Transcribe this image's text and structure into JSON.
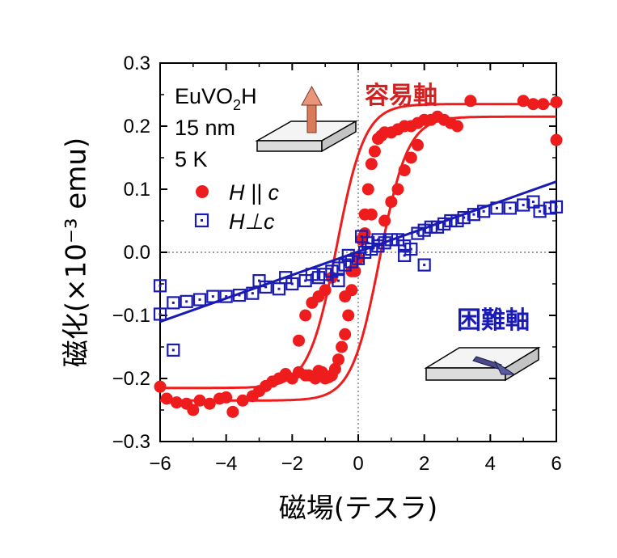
{
  "chart_data": {
    "type": "scatter",
    "xlabel": "磁場(テスラ)",
    "ylabel": "磁化(×10⁻³ emu)",
    "xlim": [
      -6,
      6
    ],
    "ylim": [
      -0.3,
      0.3
    ],
    "xticks": [
      "−6",
      "−4",
      "−2",
      "0",
      "2",
      "4",
      "6"
    ],
    "yticks": [
      "0.3",
      "0.2",
      "0.1",
      "0.0",
      "−0.1",
      "−0.2",
      "−0.3"
    ],
    "grid": false,
    "zero_lines": true,
    "annotations": {
      "sample": "EuVO",
      "sample_sub": "2",
      "sample_tail": "H",
      "thickness": "15 nm",
      "temperature": "5 K",
      "easy_axis": "容易軸",
      "hard_axis": "困難軸"
    },
    "legend_position": "left",
    "series": [
      {
        "name": "H || c",
        "marker": "filled-circle",
        "color": "#ee1c1c",
        "points": [
          [
            -6,
            -0.213
          ],
          [
            -5.8,
            -0.232
          ],
          [
            -5.5,
            -0.238
          ],
          [
            -5.2,
            -0.24
          ],
          [
            -5,
            -0.25
          ],
          [
            -4.8,
            -0.235
          ],
          [
            -4.5,
            -0.24
          ],
          [
            -4.2,
            -0.232
          ],
          [
            -4,
            -0.23
          ],
          [
            -3.8,
            -0.253
          ],
          [
            -3.5,
            -0.235
          ],
          [
            -3.2,
            -0.228
          ],
          [
            -3,
            -0.22
          ],
          [
            -2.8,
            -0.212
          ],
          [
            -2.6,
            -0.205
          ],
          [
            -2.4,
            -0.2
          ],
          [
            -2.2,
            -0.193
          ],
          [
            -2,
            -0.2
          ],
          [
            -1.8,
            -0.19
          ],
          [
            -1.6,
            -0.195
          ],
          [
            -1.5,
            -0.195
          ],
          [
            -1.3,
            -0.2
          ],
          [
            -1.2,
            -0.188
          ],
          [
            -1.1,
            -0.19
          ],
          [
            -1,
            -0.2
          ],
          [
            -0.9,
            -0.198
          ],
          [
            -0.8,
            -0.195
          ],
          [
            -0.7,
            -0.185
          ],
          [
            -0.6,
            -0.17
          ],
          [
            -0.5,
            -0.15
          ],
          [
            -0.4,
            -0.13
          ],
          [
            -0.3,
            -0.1
          ],
          [
            -0.2,
            -0.06
          ],
          [
            -0.1,
            -0.03
          ],
          [
            0,
            -0.01
          ],
          [
            0.1,
            0.02
          ],
          [
            0.2,
            0.06
          ],
          [
            0.3,
            0.1
          ],
          [
            0.4,
            0.14
          ],
          [
            0.5,
            0.16
          ],
          [
            0.6,
            0.18
          ],
          [
            0.7,
            0.185
          ],
          [
            0.8,
            0.19
          ],
          [
            1,
            0.19
          ],
          [
            1.2,
            0.195
          ],
          [
            1.4,
            0.2
          ],
          [
            1.6,
            0.2
          ],
          [
            1.8,
            0.205
          ],
          [
            2,
            0.21
          ],
          [
            2.2,
            0.21
          ],
          [
            2.4,
            0.215
          ],
          [
            2.6,
            0.21
          ],
          [
            2.8,
            0.205
          ],
          [
            3,
            0.2
          ],
          [
            3.4,
            0.24
          ],
          [
            5,
            0.24
          ],
          [
            5.3,
            0.235
          ],
          [
            5.6,
            0.235
          ],
          [
            6,
            0.238
          ],
          [
            6,
            0.178
          ],
          [
            -1.8,
            -0.14
          ],
          [
            -1.6,
            -0.1
          ],
          [
            -1.4,
            -0.08
          ],
          [
            -1.2,
            -0.07
          ],
          [
            -1,
            -0.06
          ],
          [
            -0.8,
            -0.04
          ],
          [
            0.8,
            0.05
          ],
          [
            1,
            0.08
          ],
          [
            1.2,
            0.1
          ],
          [
            1.4,
            0.13
          ],
          [
            1.6,
            0.15
          ],
          [
            1.8,
            0.17
          ],
          [
            -0.4,
            -0.07
          ],
          [
            -0.2,
            -0.03
          ],
          [
            0.2,
            0.03
          ],
          [
            0.4,
            0.06
          ]
        ]
      },
      {
        "name": "H⊥c",
        "marker": "open-square",
        "color": "#1a1ab5",
        "points": [
          [
            -6,
            -0.053
          ],
          [
            -6,
            -0.098
          ],
          [
            -5.6,
            -0.155
          ],
          [
            -5.6,
            -0.08
          ],
          [
            -5.2,
            -0.078
          ],
          [
            -4.8,
            -0.075
          ],
          [
            -4.4,
            -0.07
          ],
          [
            -4,
            -0.07
          ],
          [
            -3.6,
            -0.068
          ],
          [
            -3.2,
            -0.065
          ],
          [
            -2.8,
            -0.055
          ],
          [
            -2.4,
            -0.058
          ],
          [
            -2,
            -0.05
          ],
          [
            -1.6,
            -0.045
          ],
          [
            -1.2,
            -0.04
          ],
          [
            -1,
            -0.035
          ],
          [
            -0.8,
            -0.03
          ],
          [
            -0.6,
            -0.025
          ],
          [
            -0.4,
            -0.02
          ],
          [
            -0.2,
            -0.015
          ],
          [
            0,
            -0.01
          ],
          [
            0.2,
            0
          ],
          [
            0.4,
            0.005
          ],
          [
            0.6,
            0.01
          ],
          [
            0.8,
            0.015
          ],
          [
            1,
            0.02
          ],
          [
            1.2,
            0.02
          ],
          [
            1.4,
            0.01
          ],
          [
            1.6,
            0.005
          ],
          [
            1.8,
            0.03
          ],
          [
            2,
            0.035
          ],
          [
            2.2,
            0.04
          ],
          [
            2.4,
            0.04
          ],
          [
            2.6,
            0.045
          ],
          [
            2.8,
            0.05
          ],
          [
            3,
            0.05
          ],
          [
            3.2,
            0.055
          ],
          [
            3.5,
            0.06
          ],
          [
            3.8,
            0.065
          ],
          [
            4.2,
            0.07
          ],
          [
            4.6,
            0.07
          ],
          [
            5,
            0.075
          ],
          [
            5.3,
            0.08
          ],
          [
            5.5,
            0.065
          ],
          [
            5.8,
            0.07
          ],
          [
            6,
            0.072
          ],
          [
            -3.0,
            -0.045
          ],
          [
            -2.2,
            -0.04
          ],
          [
            -1.4,
            -0.035
          ],
          [
            0.6,
            0.02
          ],
          [
            1.4,
            -0.005
          ],
          [
            -0.6,
            -0.045
          ],
          [
            -0.3,
            -0.005
          ],
          [
            0.1,
            0.025
          ],
          [
            0.3,
            0.015
          ],
          [
            2,
            -0.02
          ]
        ]
      }
    ],
    "fits": [
      {
        "name": "fit-upper",
        "color": "#ee1c1c",
        "formula": "-0.01+0.225*tanh((x-0.65)/0.85)"
      },
      {
        "name": "fit-lower",
        "color": "#ee1c1c",
        "formula": "0.01+0.225*tanh((x+0.65)/0.85)"
      },
      {
        "name": "fit-hard",
        "color": "#1a1ab5",
        "points": [
          [
            -6,
            -0.11
          ],
          [
            6,
            0.112
          ]
        ]
      }
    ]
  }
}
